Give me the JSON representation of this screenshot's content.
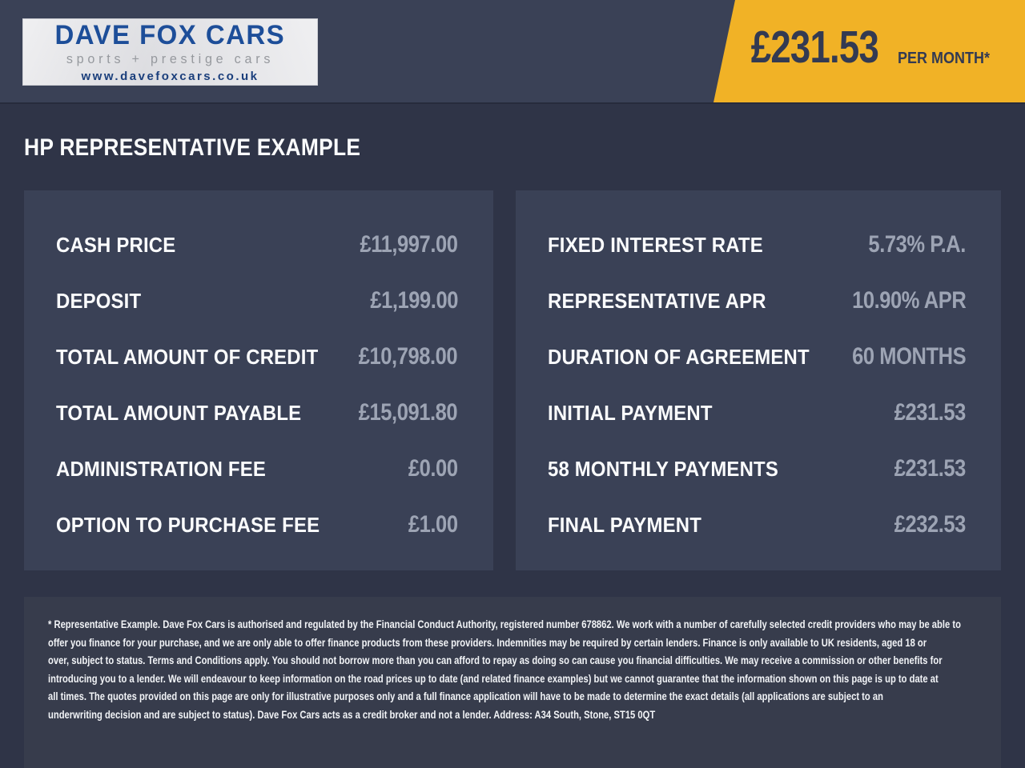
{
  "header": {
    "logo": {
      "title": "DAVE FOX CARS",
      "subtitle": "sports + prestige cars",
      "website": "www.davefoxcars.co.uk"
    },
    "ribbon": {
      "amount": "£231.53",
      "period": "PER MONTH*"
    }
  },
  "page_title": "HP REPRESENTATIVE EXAMPLE",
  "panels": {
    "left": {
      "rows": [
        {
          "label": "CASH PRICE",
          "value": "£11,997.00"
        },
        {
          "label": "DEPOSIT",
          "value": "£1,199.00"
        },
        {
          "label": "TOTAL AMOUNT OF CREDIT",
          "value": "£10,798.00"
        },
        {
          "label": "TOTAL AMOUNT PAYABLE",
          "value": "£15,091.80"
        },
        {
          "label": "ADMINISTRATION FEE",
          "value": "£0.00"
        },
        {
          "label": "OPTION TO PURCHASE FEE",
          "value": "£1.00"
        }
      ]
    },
    "right": {
      "rows": [
        {
          "label": "FIXED INTEREST RATE",
          "value": "5.73% P.A."
        },
        {
          "label": "REPRESENTATIVE APR",
          "value": "10.90% APR"
        },
        {
          "label": "DURATION OF AGREEMENT",
          "value": "60 MONTHS"
        },
        {
          "label": "INITIAL PAYMENT",
          "value": "£231.53"
        },
        {
          "label": "58 MONTHLY PAYMENTS",
          "value": "£231.53"
        },
        {
          "label": "FINAL PAYMENT",
          "value": "£232.53"
        }
      ]
    }
  },
  "footer": {
    "lines": [
      "* Representative Example. Dave Fox Cars is authorised and regulated by the Financial Conduct Authority, registered number 678862. We work with a number of carefully selected credit providers who may be able to",
      "offer you finance for your purchase, and we are only able to offer finance products from these providers. Indemnities may be required by certain lenders. Finance is only available to UK residents, aged 18 or",
      "over, subject to status. Terms and Conditions apply. You should not borrow more than you can afford to repay as doing so can cause you financial difficulties. We may receive a commission or other benefits for",
      "introducing you to a lender. We will endeavour to keep information on the road prices up to date (and related finance examples) but we cannot guarantee that the information shown on this page is up to date at",
      "all times. The quotes provided on this page are only for illustrative purposes only and a full finance application will have to be made to determine the exact details (all applications are subject to an",
      "underwriting decision and are subject to status). Dave Fox Cars acts as a credit broker and not a lender. Address: A34 South, Stone, ST15 0QT"
    ]
  },
  "colors": {
    "accent_yellow": "#F1B226",
    "ribbon_text_navy": "#333A52",
    "value_gray": "#9DA4B4",
    "logo_blue": "#1D4E99",
    "header_bg": "#3A4156",
    "body_bg": "#2F3447",
    "panel_bg": "#3A4156",
    "footer_bg": "#373C4C"
  }
}
